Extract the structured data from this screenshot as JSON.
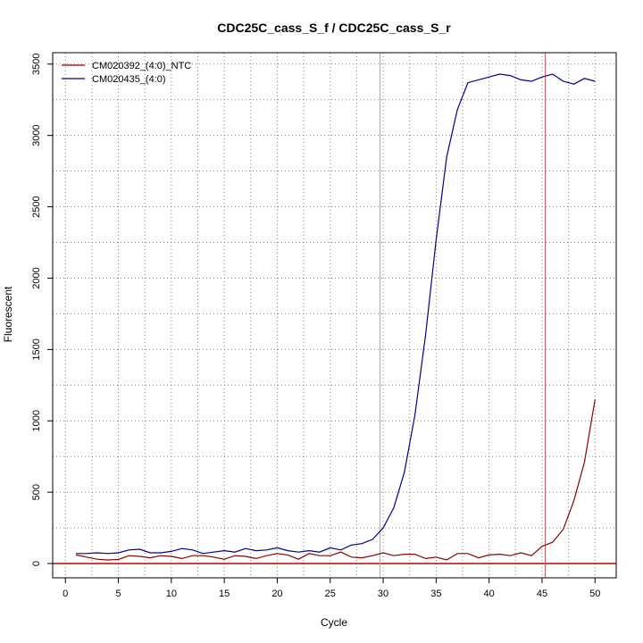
{
  "chart_data": {
    "type": "line",
    "title": "CDC25C_cass_S_f / CDC25C_cass_S_r",
    "xlabel": "Cycle",
    "ylabel": "Fluorescent",
    "xlim": [
      -1.2,
      52
    ],
    "ylim": [
      -100,
      3580
    ],
    "xticks": [
      0,
      5,
      10,
      15,
      20,
      25,
      30,
      35,
      40,
      45,
      50
    ],
    "yticks": [
      0,
      500,
      1000,
      1500,
      2000,
      2500,
      3000,
      3500
    ],
    "grid": true,
    "legend_position": "top-left",
    "threshold": {
      "value": 0,
      "color": "#cc0000"
    },
    "markers": [
      {
        "x": 29.7,
        "color": "#40e0d0"
      },
      {
        "x": 45.3,
        "color": "#cd5c5c"
      }
    ],
    "series": [
      {
        "name": "CM020392_(4:0)_NTC",
        "color": "#8b0000",
        "x": [
          1,
          2,
          3,
          4,
          5,
          6,
          7,
          8,
          9,
          10,
          11,
          12,
          13,
          14,
          15,
          16,
          17,
          18,
          19,
          20,
          21,
          22,
          23,
          24,
          25,
          26,
          27,
          28,
          29,
          30,
          31,
          32,
          33,
          34,
          35,
          36,
          37,
          38,
          39,
          40,
          41,
          42,
          43,
          44,
          45,
          46,
          47,
          48,
          49,
          50
        ],
        "y": [
          60,
          45,
          30,
          25,
          28,
          55,
          50,
          40,
          55,
          50,
          35,
          55,
          55,
          45,
          30,
          55,
          50,
          35,
          55,
          70,
          60,
          30,
          70,
          55,
          55,
          80,
          45,
          40,
          55,
          75,
          55,
          65,
          65,
          35,
          45,
          25,
          70,
          70,
          40,
          60,
          65,
          55,
          75,
          55,
          120,
          150,
          240,
          440,
          710,
          1150
        ]
      },
      {
        "name": "CM020435_(4:0)",
        "color": "#00008b",
        "x": [
          1,
          2,
          3,
          4,
          5,
          6,
          7,
          8,
          9,
          10,
          11,
          12,
          13,
          14,
          15,
          16,
          17,
          18,
          19,
          20,
          21,
          22,
          23,
          24,
          25,
          26,
          27,
          28,
          29,
          30,
          31,
          32,
          33,
          34,
          35,
          36,
          37,
          38,
          39,
          40,
          41,
          42,
          43,
          44,
          45,
          46,
          47,
          48,
          49,
          50
        ],
        "y": [
          70,
          70,
          75,
          70,
          75,
          95,
          100,
          75,
          75,
          85,
          105,
          95,
          70,
          80,
          90,
          80,
          105,
          90,
          95,
          110,
          90,
          80,
          90,
          80,
          110,
          95,
          130,
          140,
          170,
          250,
          390,
          640,
          1040,
          1600,
          2270,
          2850,
          3180,
          3370,
          3390,
          3410,
          3430,
          3420,
          3390,
          3380,
          3410,
          3430,
          3380,
          3360,
          3400,
          3380
        ]
      }
    ]
  }
}
